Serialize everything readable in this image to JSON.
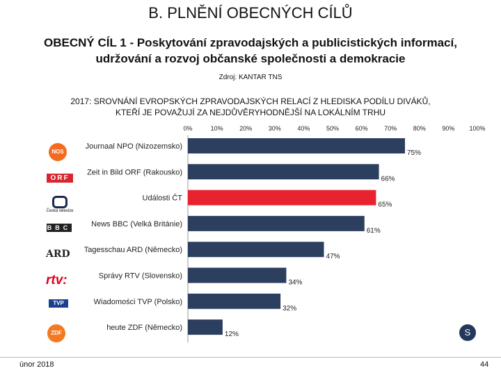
{
  "header": {
    "title": "B. PLNĚNÍ OBECNÝCH CÍLŮ",
    "subtitle_line1": "OBECNÝ CÍL 1 - Poskytování zpravodajských a publicistických informací,",
    "subtitle_line2": "udržování a rozvoj občanské společnosti a demokracie",
    "source": "Zdroj: KANTAR TNS"
  },
  "footer": {
    "date": "únor 2018",
    "page": "44"
  },
  "logos": {
    "nos": "NOS",
    "orf": "ORF",
    "ct": "Česká televize",
    "bbc": "BBC",
    "ard": "ARD",
    "rtvs": "rtv:",
    "tvp": "TVP",
    "zdf": "ZDF"
  },
  "badge": "S",
  "chart_data": {
    "type": "bar",
    "orientation": "horizontal",
    "title_line1": "2017: SROVNÁNÍ EVROPSKÝCH ZPRAVODAJSKÝCH RELACÍ Z HLEDISKA PODÍLU DIVÁKŮ,",
    "title_line2": "KTEŘÍ JE POVAŽUJÍ ZA NEJDŮVĚRYHODNĚJŠÍ NA LOKÁLNÍM TRHU",
    "categories": [
      "Journaal NPO (Nizozemsko)",
      "Zeit in Bild ORF (Rakousko)",
      "Události ČT",
      "News BBC (Velká Británie)",
      "Tagesschau ARD (Německo)",
      "Správy RTV (Slovensko)",
      "Wiadomości TVP (Polsko)",
      "heute ZDF (Německo)"
    ],
    "values": [
      75,
      66,
      65,
      61,
      47,
      34,
      32,
      12
    ],
    "value_labels": [
      "75%",
      "66%",
      "65%",
      "61%",
      "47%",
      "34%",
      "32%",
      "12%"
    ],
    "highlight_index": 2,
    "colors": {
      "bar": "#2d3f5f",
      "highlight": "#e8232f"
    },
    "xlim": [
      0,
      100
    ],
    "xticks": [
      "0%",
      "10%",
      "20%",
      "30%",
      "40%",
      "50%",
      "60%",
      "70%",
      "80%",
      "90%",
      "100%"
    ],
    "axis_position": "top",
    "grid": false
  }
}
